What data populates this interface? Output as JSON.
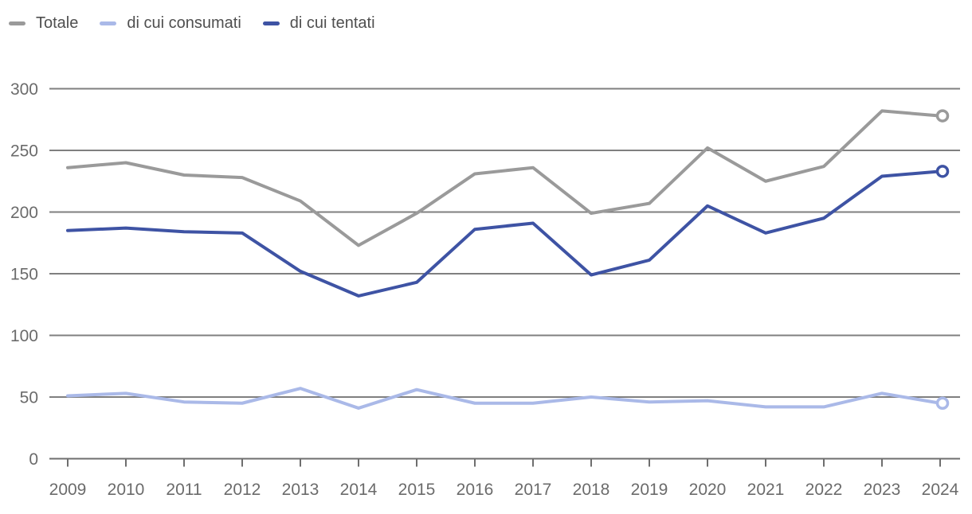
{
  "chart_data": {
    "type": "line",
    "x": [
      2009,
      2010,
      2011,
      2012,
      2013,
      2014,
      2015,
      2016,
      2017,
      2018,
      2019,
      2020,
      2021,
      2022,
      2023,
      2024
    ],
    "series": [
      {
        "name": "Totale",
        "color": "#9a9a9a",
        "values": [
          236,
          240,
          230,
          228,
          209,
          173,
          199,
          231,
          236,
          199,
          207,
          252,
          225,
          237,
          282,
          278
        ]
      },
      {
        "name": "di cui consumati",
        "color": "#aab9e8",
        "values": [
          51,
          53,
          46,
          45,
          57,
          41,
          56,
          45,
          45,
          50,
          46,
          47,
          42,
          42,
          53,
          45
        ]
      },
      {
        "name": "di cui tentati",
        "color": "#3e53a4",
        "values": [
          185,
          187,
          184,
          183,
          152,
          132,
          143,
          186,
          191,
          149,
          161,
          205,
          183,
          195,
          229,
          233
        ]
      }
    ],
    "ylim": [
      0,
      300
    ],
    "yticks": [
      0,
      50,
      100,
      150,
      200,
      250,
      300
    ],
    "grid": "horizontal",
    "legend_position": "top-left",
    "end_markers": "open-circle",
    "colors": {
      "gridline": "#7f7f7f",
      "axis": "#6e6e6e",
      "tick_label": "#6b6b6b",
      "legend_text": "#4f4f4f",
      "background": "#ffffff"
    }
  }
}
